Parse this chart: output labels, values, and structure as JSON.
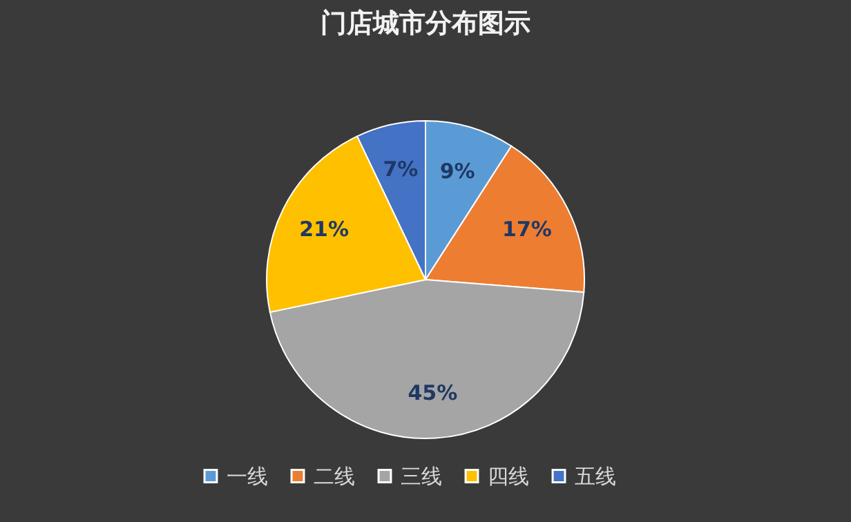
{
  "chart_data": {
    "type": "pie",
    "title": "门店城市分布图示",
    "categories": [
      "一线",
      "二线",
      "三线",
      "四线",
      "五线"
    ],
    "values": [
      9,
      17,
      45,
      21,
      7
    ],
    "colors": [
      "#5b9bd5",
      "#ed7d31",
      "#a5a5a5",
      "#ffc000",
      "#4472c4"
    ],
    "value_labels": [
      "9%",
      "17%",
      "45%",
      "21%",
      "7%"
    ],
    "legend": "bottom"
  }
}
